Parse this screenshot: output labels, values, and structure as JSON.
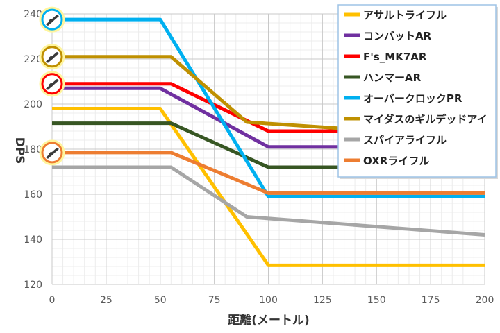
{
  "chart_data": {
    "type": "line",
    "title": "",
    "xlabel": "距離(メートル)",
    "ylabel": "DPS",
    "xlim": [
      0,
      200
    ],
    "ylim": [
      120,
      240
    ],
    "xticks": [
      0,
      25,
      50,
      75,
      100,
      125,
      150,
      175,
      200
    ],
    "yticks": [
      120,
      140,
      160,
      180,
      200,
      220,
      240
    ],
    "grid": true,
    "legend_position": "top-right",
    "series": [
      {
        "name": "アサルトライフル",
        "color": "#FFC000",
        "points": [
          [
            0,
            198
          ],
          [
            50,
            198
          ],
          [
            100,
            128.5
          ],
          [
            200,
            128.5
          ]
        ]
      },
      {
        "name": "コンバットAR",
        "color": "#7030A0",
        "points": [
          [
            0,
            207
          ],
          [
            50,
            207
          ],
          [
            100,
            181
          ],
          [
            200,
            181
          ]
        ]
      },
      {
        "name": "F's_MK7AR",
        "color": "#FF0000",
        "points": [
          [
            0,
            209
          ],
          [
            55,
            209
          ],
          [
            100,
            188
          ],
          [
            200,
            188
          ]
        ]
      },
      {
        "name": "ハンマーAR",
        "color": "#375623",
        "points": [
          [
            0,
            191.5
          ],
          [
            55,
            191.5
          ],
          [
            100,
            172
          ],
          [
            200,
            172
          ]
        ]
      },
      {
        "name": "オーバークロックPR",
        "color": "#00B0F0",
        "points": [
          [
            0,
            237.5
          ],
          [
            50,
            237.5
          ],
          [
            100,
            159
          ],
          [
            200,
            159
          ]
        ]
      },
      {
        "name": "マイダスのギルデッドアイ",
        "color": "#BF9000",
        "points": [
          [
            0,
            221
          ],
          [
            55,
            221
          ],
          [
            90,
            192
          ],
          [
            200,
            185
          ]
        ]
      },
      {
        "name": "スパイアライフル",
        "color": "#A6A6A6",
        "points": [
          [
            0,
            172
          ],
          [
            55,
            172
          ],
          [
            90,
            150
          ],
          [
            200,
            142
          ]
        ]
      },
      {
        "name": "OXRライフル",
        "color": "#ED7D31",
        "points": [
          [
            0,
            178.5
          ],
          [
            55,
            178.5
          ],
          [
            100,
            160.5
          ],
          [
            200,
            160.5
          ]
        ]
      }
    ],
    "markers": [
      {
        "series": "オーバークロックPR",
        "icon": "weapon-icon",
        "x": 0,
        "y": 237.5,
        "ring": "#00B0F0"
      },
      {
        "series": "マイダスのギルデッドアイ",
        "icon": "weapon-icon",
        "x": 0,
        "y": 221,
        "ring": "#BF9000"
      },
      {
        "series": "F's_MK7AR",
        "icon": "weapon-icon",
        "x": 0,
        "y": 209,
        "ring": "#FF0000"
      },
      {
        "series": "OXRライフル",
        "icon": "weapon-icon",
        "x": 0,
        "y": 178.5,
        "ring": "#ED7D31"
      }
    ]
  }
}
